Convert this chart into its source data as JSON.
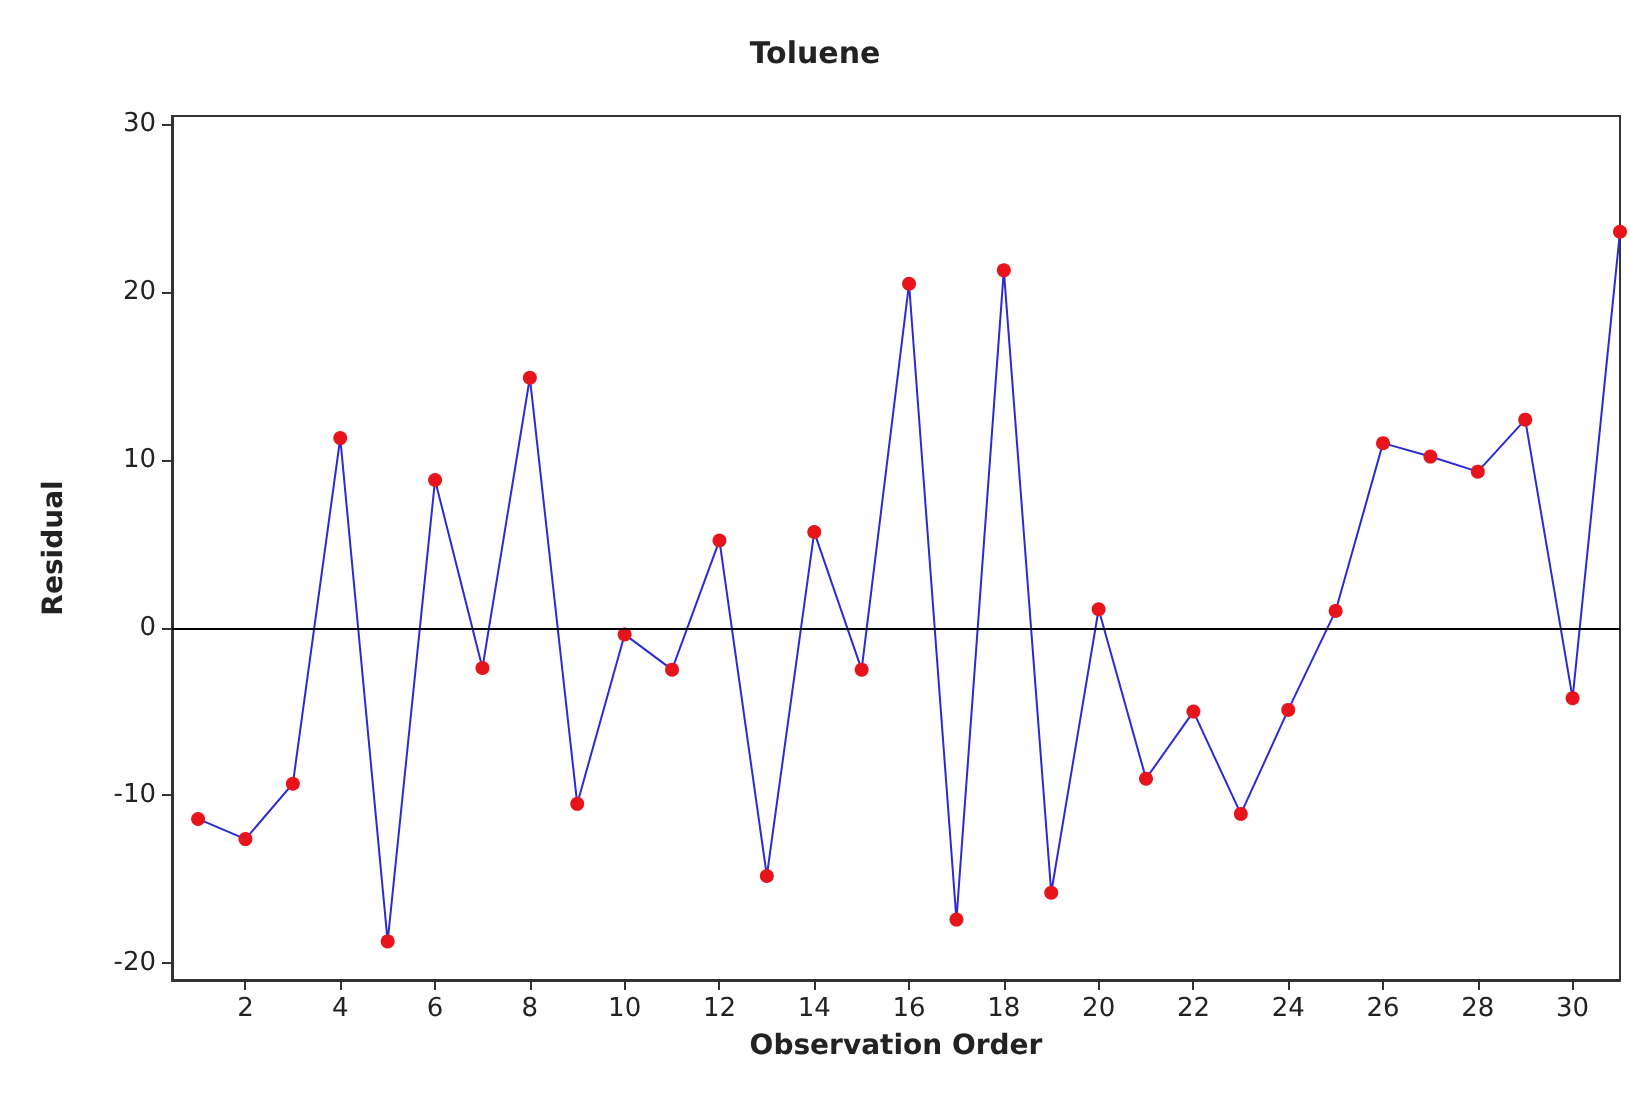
{
  "chart_data": {
    "type": "line",
    "title": "Toluene",
    "xlabel": "Observation Order",
    "ylabel": "Residual",
    "x": [
      1,
      2,
      3,
      4,
      5,
      6,
      7,
      8,
      9,
      10,
      11,
      12,
      13,
      14,
      15,
      16,
      17,
      18,
      19,
      20,
      21,
      22,
      23,
      24,
      25,
      26,
      27,
      28,
      29,
      30,
      31
    ],
    "series": [
      {
        "color": "#2b2bd6",
        "values": [
          -11.4,
          -12.6,
          -9.3,
          11.3,
          -18.7,
          8.8,
          -2.4,
          14.9,
          -10.5,
          -0.4,
          -2.5,
          5.2,
          -14.8,
          5.7,
          -2.5,
          20.5,
          -17.4,
          21.3,
          -15.8,
          1.1,
          -9.0,
          -5.0,
          -11.1,
          -4.9,
          1.0,
          11.0,
          10.2,
          9.3,
          12.4,
          -4.2,
          23.6
        ]
      }
    ],
    "colors": [
      "#e8141c",
      "#e8141c",
      "#e8141c",
      "#e8141c",
      "#e8141c",
      "#e8141c",
      "#e8141c",
      "#e8141c",
      "#e8141c",
      "#e8141c",
      "#e8141c",
      "#e8141c",
      "#e8141c",
      "#e8141c",
      "#e8141c",
      "#e8141c",
      "#e8141c",
      "#e8141c",
      "#e8141c",
      "#e8141c",
      "#e8141c",
      "#e8141c",
      "#e8141c",
      "#e8141c",
      "#e8141c",
      "#e8141c",
      "#e8141c",
      "#e8141c",
      "#e8141c",
      "#e8141c",
      "#e8141c"
    ],
    "marker": "circle",
    "line_style": "solid",
    "xlim": [
      0.45,
      31
    ],
    "xticks": [
      2,
      4,
      6,
      8,
      10,
      12,
      14,
      16,
      18,
      20,
      22,
      24,
      26,
      28,
      30
    ],
    "ylim": [
      -21,
      30.5
    ],
    "yticks": [
      -20,
      -10,
      0,
      10,
      20,
      30
    ],
    "ref_lines": [
      {
        "axis": "y",
        "value": 0,
        "color": "#000000"
      }
    ],
    "grid": false
  }
}
